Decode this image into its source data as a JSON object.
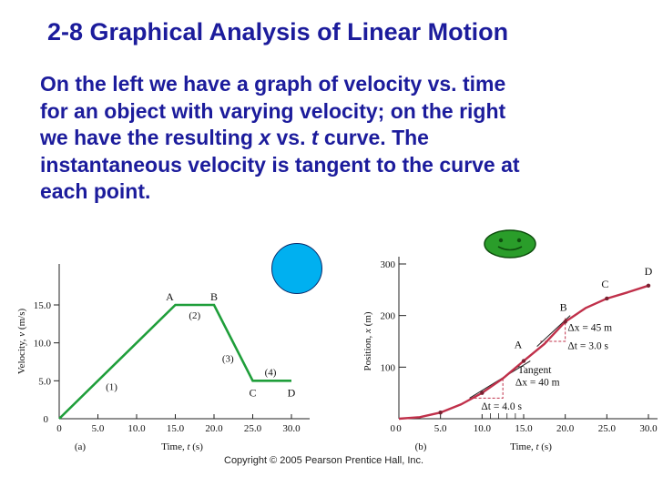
{
  "title": "2-8 Graphical Analysis of Linear Motion",
  "paragraph": {
    "line1": "On the left we have a graph of velocity vs. time",
    "line2": "for an object with varying velocity; on the right",
    "line3_a": "we have the resulting ",
    "line3_x": "x",
    "line3_b": " vs. ",
    "line3_t": "t",
    "line3_c": " curve. The",
    "line4": "instantaneous velocity is tangent to the curve at",
    "line5": "each point."
  },
  "decorations": {
    "circle_color": "#00b0f0",
    "smiley_color": "#2a9d2a",
    "smiley_icon": "smiley-face-icon"
  },
  "copyright": "Copyright © 2005 Pearson Prentice Hall, Inc.",
  "chart_data": [
    {
      "type": "line",
      "panel_label": "(a)",
      "ylabel_text": "Velocity, ",
      "ylabel_var": "v",
      "ylabel_unit": " (m/s)",
      "xlabel_text": "Time, ",
      "xlabel_var": "t",
      "xlabel_unit": " (s)",
      "xlim": [
        0,
        30
      ],
      "ylim": [
        0,
        15
      ],
      "xticks": [
        "0",
        "5.0",
        "10.0",
        "15.0",
        "20.0",
        "25.0",
        "30.0"
      ],
      "yticks": [
        "0",
        "5.0",
        "10.0",
        "15.0"
      ],
      "color": "#1f9e3a",
      "points": [
        [
          0,
          0
        ],
        [
          15,
          15
        ],
        [
          20,
          15
        ],
        [
          25,
          5
        ],
        [
          30,
          5
        ]
      ],
      "point_labels": [
        "A",
        "B",
        "C",
        "D"
      ],
      "segment_labels": [
        "(1)",
        "(2)",
        "(3)",
        "(4)"
      ]
    },
    {
      "type": "line",
      "panel_label": "(b)",
      "ylabel_text": "Position, ",
      "ylabel_var": "x",
      "ylabel_unit": " (m)",
      "xlabel_text": "Time, ",
      "xlabel_var": "t",
      "xlabel_unit": " (s)",
      "xlim": [
        0,
        30
      ],
      "ylim": [
        0,
        300
      ],
      "xticks": [
        "0",
        "5.0",
        "10.0",
        "15.0",
        "20.0",
        "25.0",
        "30.0"
      ],
      "yticks": [
        "100",
        "200",
        "300"
      ],
      "color": "#c0304a",
      "curve": [
        [
          0,
          0
        ],
        [
          2.5,
          3
        ],
        [
          5,
          12
        ],
        [
          7.5,
          28
        ],
        [
          10,
          50
        ],
        [
          12.5,
          78
        ],
        [
          15,
          112
        ],
        [
          17.5,
          145
        ],
        [
          20,
          188
        ],
        [
          22.5,
          215
        ],
        [
          25,
          233
        ],
        [
          27.5,
          245
        ],
        [
          30,
          258
        ]
      ],
      "markers": [
        [
          5,
          12
        ],
        [
          10,
          50
        ],
        [
          15,
          112
        ],
        [
          20,
          188
        ],
        [
          25,
          233
        ],
        [
          30,
          258
        ]
      ],
      "marker_labels": [
        "A",
        "B",
        "C",
        "D"
      ],
      "tangent_label": "Tangent",
      "triangles": {
        "dx_a": "Δx = 40 m",
        "dt_a": "Δt = 4.0 s",
        "dx_b": "Δx = 45 m",
        "dt_b": "Δt = 3.0 s"
      }
    }
  ]
}
